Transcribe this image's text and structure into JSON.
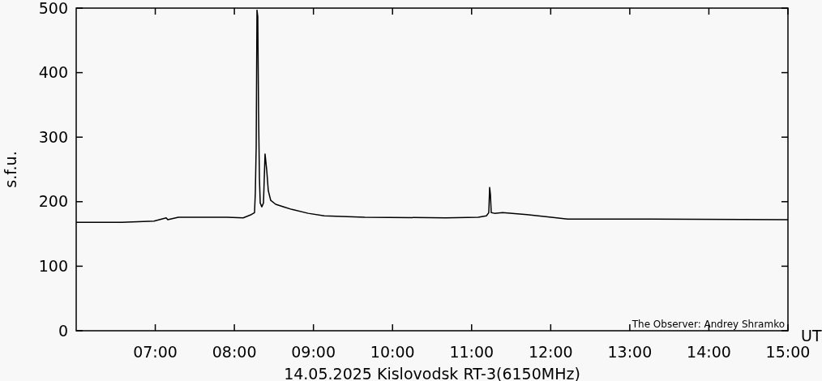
{
  "chart_data": {
    "type": "line",
    "xlabel": "14.05.2025 Kislovodsk RT-3(6150MHz)",
    "ylabel": "s.f.u.",
    "annotations": [
      "UT",
      "The Observer: Andrey Shramko"
    ],
    "xlim": [
      6,
      15
    ],
    "ylim": [
      0,
      500
    ],
    "xticks": [
      {
        "value": 7,
        "label": "07:00"
      },
      {
        "value": 8,
        "label": "08:00"
      },
      {
        "value": 9,
        "label": "09:00"
      },
      {
        "value": 10,
        "label": "10:00"
      },
      {
        "value": 11,
        "label": "11:00"
      },
      {
        "value": 12,
        "label": "12:00"
      },
      {
        "value": 13,
        "label": "13:00"
      },
      {
        "value": 14,
        "label": "14:00"
      },
      {
        "value": 15,
        "label": "15:00"
      }
    ],
    "yticks": [
      0,
      100,
      200,
      300,
      400,
      500
    ],
    "grid": false,
    "series": [
      {
        "color": "#000000",
        "x": [
          6.0,
          6.574,
          6.984,
          7.138,
          7.158,
          7.292,
          7.907,
          8.112,
          8.214,
          8.255,
          8.265,
          8.276,
          8.286,
          8.296,
          8.306,
          8.317,
          8.327,
          8.347,
          8.368,
          8.388,
          8.409,
          8.429,
          8.46,
          8.522,
          8.624,
          8.727,
          8.932,
          9.137,
          9.649,
          10.674,
          11.084,
          11.187,
          11.217,
          11.228,
          11.238,
          11.248,
          11.289,
          11.392,
          11.699,
          12.007,
          12.212,
          13.237,
          15.0
        ],
        "values": [
          168,
          168,
          170,
          175,
          172,
          176,
          176,
          175,
          180,
          183,
          214,
          286,
          497,
          487,
          337,
          236,
          198,
          192,
          198,
          274,
          249,
          217,
          202,
          196,
          192,
          188,
          182,
          178,
          176,
          175,
          176,
          178,
          183,
          222,
          211,
          183,
          182,
          183,
          180,
          176,
          173,
          173,
          172
        ]
      }
    ]
  }
}
